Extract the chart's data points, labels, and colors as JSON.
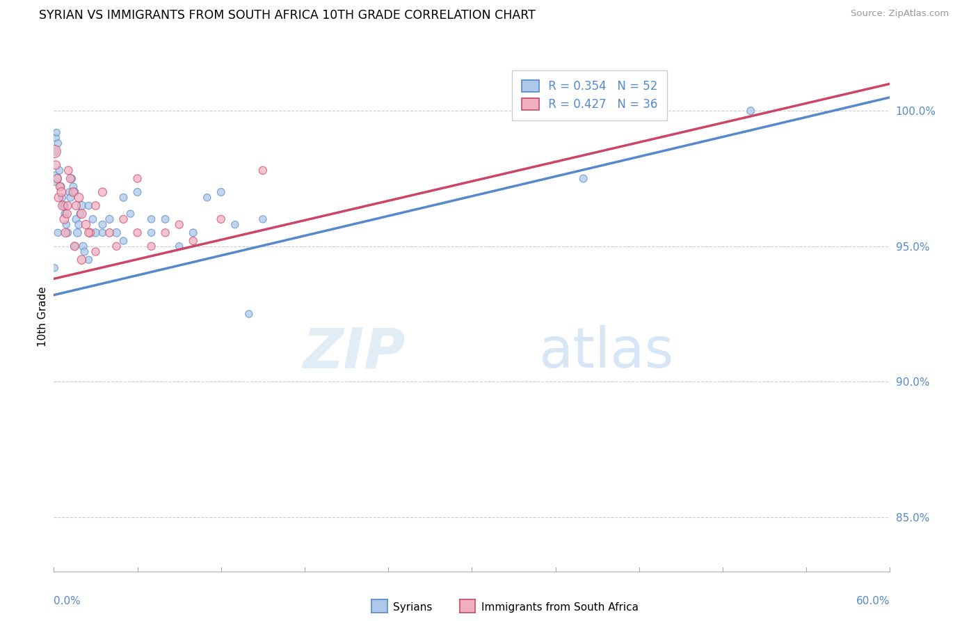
{
  "title": "SYRIAN VS IMMIGRANTS FROM SOUTH AFRICA 10TH GRADE CORRELATION CHART",
  "source_text": "Source: ZipAtlas.com",
  "ylabel": "10th Grade",
  "ylabel_right_ticks": [
    85.0,
    90.0,
    95.0,
    100.0
  ],
  "xmin": 0.0,
  "xmax": 60.0,
  "ymin": 83.0,
  "ymax": 101.8,
  "blue_R": 0.354,
  "blue_N": 52,
  "pink_R": 0.427,
  "pink_N": 36,
  "blue_color": "#adc8e8",
  "pink_color": "#f0b0c0",
  "blue_line_color": "#5588cc",
  "pink_line_color": "#cc4466",
  "legend_label_blue": "Syrians",
  "legend_label_pink": "Immigrants from South Africa",
  "watermark_zip": "ZIP",
  "watermark_atlas": "atlas",
  "blue_scatter_x": [
    0.05,
    0.1,
    0.15,
    0.2,
    0.3,
    0.4,
    0.5,
    0.6,
    0.7,
    0.8,
    0.9,
    1.0,
    1.1,
    1.2,
    1.3,
    1.4,
    1.5,
    1.6,
    1.7,
    1.8,
    1.9,
    2.0,
    2.1,
    2.2,
    2.5,
    2.8,
    3.0,
    3.5,
    4.0,
    4.5,
    5.0,
    5.5,
    6.0,
    7.0,
    8.0,
    9.0,
    10.0,
    11.0,
    12.0,
    13.0,
    14.0,
    15.0,
    0.05,
    0.3,
    0.8,
    1.5,
    2.5,
    3.5,
    5.0,
    7.0,
    38.0,
    50.0
  ],
  "blue_scatter_y": [
    97.5,
    98.5,
    99.0,
    99.2,
    98.8,
    97.8,
    97.2,
    96.8,
    96.5,
    96.2,
    95.8,
    95.5,
    97.0,
    96.8,
    97.5,
    97.2,
    97.0,
    96.0,
    95.5,
    95.8,
    96.2,
    96.5,
    95.0,
    94.8,
    96.5,
    96.0,
    95.5,
    95.8,
    96.0,
    95.5,
    96.8,
    96.2,
    97.0,
    95.5,
    96.0,
    95.0,
    95.5,
    96.8,
    97.0,
    95.8,
    92.5,
    96.0,
    94.2,
    95.5,
    96.5,
    95.0,
    94.5,
    95.5,
    95.2,
    96.0,
    97.5,
    100.0
  ],
  "blue_scatter_size": [
    200,
    60,
    55,
    50,
    55,
    60,
    65,
    60,
    55,
    60,
    55,
    60,
    55,
    60,
    55,
    60,
    65,
    60,
    70,
    65,
    60,
    75,
    65,
    60,
    55,
    60,
    65,
    60,
    65,
    70,
    60,
    55,
    60,
    55,
    60,
    55,
    60,
    55,
    60,
    55,
    55,
    55,
    55,
    55,
    55,
    55,
    55,
    55,
    55,
    55,
    60,
    60
  ],
  "pink_scatter_x": [
    0.05,
    0.15,
    0.25,
    0.35,
    0.45,
    0.55,
    0.65,
    0.75,
    0.85,
    0.95,
    1.05,
    1.2,
    1.4,
    1.6,
    1.8,
    2.0,
    2.3,
    2.6,
    3.0,
    3.5,
    4.0,
    5.0,
    6.0,
    7.0,
    8.0,
    10.0,
    12.0,
    15.0,
    1.0,
    1.5,
    2.0,
    2.5,
    3.0,
    4.5,
    6.0,
    9.0
  ],
  "pink_scatter_y": [
    98.5,
    98.0,
    97.5,
    96.8,
    97.2,
    97.0,
    96.5,
    96.0,
    95.5,
    96.2,
    97.8,
    97.5,
    97.0,
    96.5,
    96.8,
    96.2,
    95.8,
    95.5,
    96.5,
    97.0,
    95.5,
    96.0,
    97.5,
    95.0,
    95.5,
    95.2,
    96.0,
    97.8,
    96.5,
    95.0,
    94.5,
    95.5,
    94.8,
    95.0,
    95.5,
    95.8
  ],
  "pink_scatter_size": [
    170,
    80,
    75,
    80,
    75,
    85,
    90,
    85,
    80,
    75,
    70,
    75,
    80,
    75,
    85,
    90,
    80,
    75,
    70,
    75,
    70,
    65,
    65,
    65,
    65,
    65,
    65,
    65,
    70,
    75,
    80,
    70,
    65,
    65,
    65,
    65
  ],
  "blue_trendline_x": [
    0.0,
    60.0
  ],
  "blue_trendline_y": [
    93.2,
    100.5
  ],
  "pink_trendline_x": [
    0.0,
    60.0
  ],
  "pink_trendline_y": [
    93.8,
    101.0
  ]
}
